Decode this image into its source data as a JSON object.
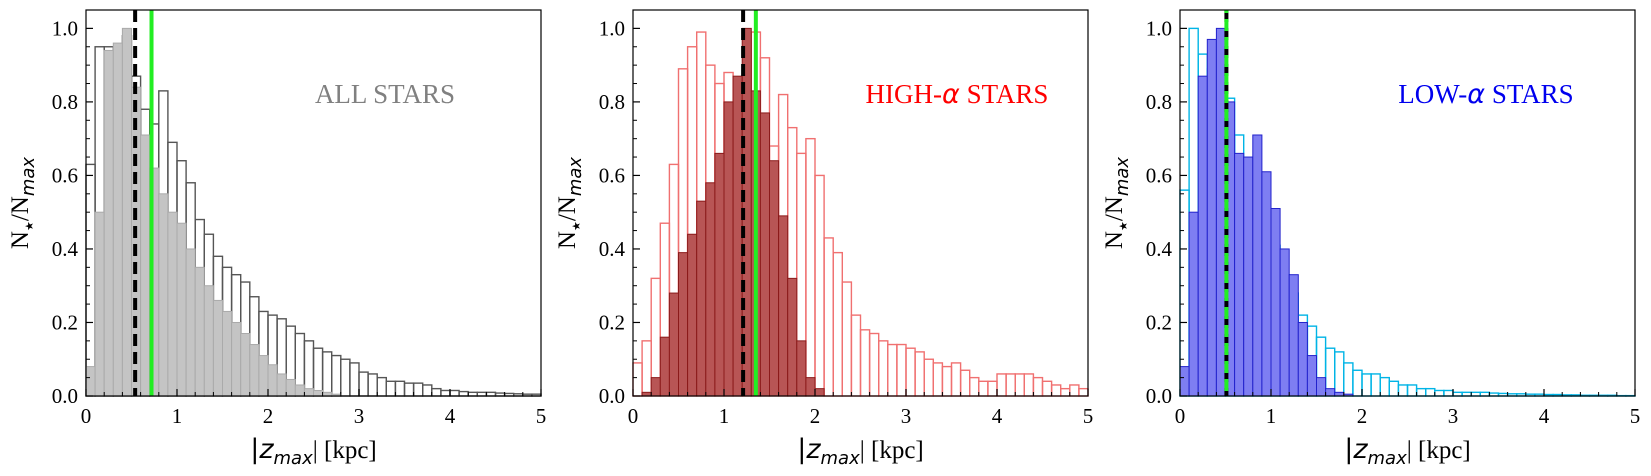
{
  "chart_data": [
    {
      "type": "bar",
      "panel_label": "ALL STARS",
      "label_color": "#808080",
      "xlabel_main": "|z",
      "xlabel_sub": "max",
      "xlabel_tail": "| [kpc]",
      "ylabel_main": "N",
      "ylabel_star": "★",
      "ylabel_mid": "/N",
      "ylabel_sub": "max",
      "xlim": [
        0,
        5
      ],
      "ylim": [
        0,
        1.05
      ],
      "xticks": [
        "0",
        "1",
        "2",
        "3",
        "4",
        "5"
      ],
      "yticks": [
        "0.0",
        "0.2",
        "0.4",
        "0.6",
        "0.8",
        "1.0"
      ],
      "bin_width": 0.1,
      "bin_start": 0,
      "vlines": [
        {
          "x": 0.54,
          "style": "dashed",
          "color": "#000000"
        },
        {
          "x": 0.72,
          "style": "solid",
          "color": "#22ee22"
        }
      ],
      "series": [
        {
          "style": "step",
          "edge": "#555555",
          "fill": "none",
          "values": [
            0.63,
            0.95,
            0.95,
            0.94,
            0.98,
            0.87,
            0.78,
            0.74,
            0.83,
            0.69,
            0.64,
            0.58,
            0.48,
            0.44,
            0.38,
            0.35,
            0.33,
            0.31,
            0.27,
            0.23,
            0.22,
            0.21,
            0.19,
            0.17,
            0.15,
            0.13,
            0.12,
            0.11,
            0.1,
            0.09,
            0.065,
            0.06,
            0.05,
            0.04,
            0.04,
            0.035,
            0.035,
            0.03,
            0.02,
            0.015,
            0.015,
            0.012,
            0.01,
            0.01,
            0.01,
            0.008,
            0.007,
            0.006,
            0.005,
            0.005
          ]
        },
        {
          "style": "filled",
          "edge": "#aaaaaa",
          "fill": "#c4c4c4",
          "values": [
            0.08,
            0.5,
            0.94,
            0.96,
            1.0,
            0.84,
            0.71,
            0.62,
            0.55,
            0.5,
            0.47,
            0.4,
            0.35,
            0.3,
            0.26,
            0.23,
            0.2,
            0.17,
            0.14,
            0.11,
            0.085,
            0.06,
            0.045,
            0.03,
            0.02,
            0.015,
            0.01,
            0.005,
            0.0,
            0.0,
            0.0,
            0.0,
            0.0,
            0.0,
            0.0,
            0.0,
            0.0,
            0.0,
            0.0,
            0.0,
            0.0,
            0.0,
            0.0,
            0.0,
            0.0,
            0.0,
            0.0,
            0.0,
            0.0,
            0.0
          ]
        }
      ]
    },
    {
      "type": "bar",
      "panel_label_main": "HIGH-",
      "panel_label_greek": "α",
      "panel_label_tail": " STARS",
      "label_color": "#ff0000",
      "xlabel_main": "|z",
      "xlabel_sub": "max",
      "xlabel_tail": "| [kpc]",
      "ylabel_main": "N",
      "ylabel_star": "★",
      "ylabel_mid": "/N",
      "ylabel_sub": "max",
      "xlim": [
        0,
        5
      ],
      "ylim": [
        0,
        1.05
      ],
      "xticks": [
        "0",
        "1",
        "2",
        "3",
        "4",
        "5"
      ],
      "yticks": [
        "0.0",
        "0.2",
        "0.4",
        "0.6",
        "0.8",
        "1.0"
      ],
      "bin_width": 0.1,
      "bin_start": 0,
      "vlines": [
        {
          "x": 1.21,
          "style": "dashed",
          "color": "#000000"
        },
        {
          "x": 1.35,
          "style": "solid",
          "color": "#22ee22"
        }
      ],
      "series": [
        {
          "style": "step",
          "edge": "#f07070",
          "fill": "none",
          "values": [
            0.09,
            0.15,
            0.32,
            0.47,
            0.63,
            0.89,
            0.95,
            0.99,
            0.9,
            0.85,
            0.88,
            0.74,
            0.83,
            0.99,
            0.92,
            0.68,
            0.82,
            0.73,
            0.66,
            0.7,
            0.6,
            0.43,
            0.39,
            0.31,
            0.22,
            0.18,
            0.17,
            0.15,
            0.14,
            0.14,
            0.13,
            0.12,
            0.1,
            0.09,
            0.08,
            0.09,
            0.07,
            0.05,
            0.04,
            0.04,
            0.06,
            0.06,
            0.06,
            0.06,
            0.05,
            0.04,
            0.03,
            0.02,
            0.03,
            0.02
          ]
        },
        {
          "style": "filled",
          "edge": "#8b1a1a",
          "fill": "#b85555",
          "values": [
            0.0,
            0.01,
            0.05,
            0.16,
            0.28,
            0.39,
            0.44,
            0.53,
            0.58,
            0.66,
            0.8,
            0.87,
            1.0,
            0.83,
            0.77,
            0.64,
            0.49,
            0.32,
            0.15,
            0.05,
            0.02,
            0.0,
            0.0,
            0.0,
            0.0,
            0.0,
            0.0,
            0.0,
            0.0,
            0.0,
            0.0,
            0.0,
            0.0,
            0.0,
            0.0,
            0.0,
            0.0,
            0.0,
            0.0,
            0.0,
            0.0,
            0.0,
            0.0,
            0.0,
            0.0,
            0.0,
            0.0,
            0.0,
            0.0,
            0.0
          ]
        }
      ]
    },
    {
      "type": "bar",
      "panel_label_main": "LOW-",
      "panel_label_greek": "α",
      "panel_label_tail": " STARS",
      "label_color": "#0000ee",
      "xlabel_main": "|z",
      "xlabel_sub": "max",
      "xlabel_tail": "| [kpc]",
      "ylabel_main": "N",
      "ylabel_star": "★",
      "ylabel_mid": "/N",
      "ylabel_sub": "max",
      "xlim": [
        0,
        5
      ],
      "ylim": [
        0,
        1.05
      ],
      "xticks": [
        "0",
        "1",
        "2",
        "3",
        "4",
        "5"
      ],
      "yticks": [
        "0.0",
        "0.2",
        "0.4",
        "0.6",
        "0.8",
        "1.0"
      ],
      "bin_width": 0.1,
      "bin_start": 0,
      "vlines": [
        {
          "x": 0.51,
          "style": "dashed",
          "color": "#000000"
        },
        {
          "x": 0.51,
          "style": "dashed-offset",
          "color": "#22ee22"
        }
      ],
      "series": [
        {
          "style": "step",
          "edge": "#00b4e6",
          "fill": "none",
          "values": [
            0.56,
            1.0,
            0.93,
            0.89,
            0.93,
            0.81,
            0.71,
            0.64,
            0.6,
            0.51,
            0.41,
            0.33,
            0.28,
            0.22,
            0.19,
            0.16,
            0.13,
            0.12,
            0.09,
            0.07,
            0.06,
            0.06,
            0.05,
            0.04,
            0.03,
            0.03,
            0.02,
            0.02,
            0.015,
            0.015,
            0.01,
            0.01,
            0.01,
            0.01,
            0.008,
            0.007,
            0.006,
            0.006,
            0.005,
            0.005,
            0.004,
            0.004,
            0.003,
            0.003,
            0.002,
            0.002,
            0.002,
            0.002,
            0.001,
            0.001
          ]
        },
        {
          "style": "filled",
          "edge": "#2222cc",
          "fill": "#7e7ef2",
          "values": [
            0.08,
            0.5,
            0.87,
            0.97,
            1.0,
            0.8,
            0.66,
            0.65,
            0.71,
            0.61,
            0.51,
            0.4,
            0.33,
            0.2,
            0.11,
            0.05,
            0.02,
            0.01,
            0.005,
            0.0,
            0.0,
            0.0,
            0.0,
            0.0,
            0.0,
            0.0,
            0.0,
            0.0,
            0.0,
            0.0,
            0.0,
            0.0,
            0.0,
            0.0,
            0.0,
            0.0,
            0.0,
            0.0,
            0.0,
            0.0,
            0.0,
            0.0,
            0.0,
            0.0,
            0.0,
            0.0,
            0.0,
            0.0,
            0.0,
            0.0
          ]
        }
      ]
    }
  ]
}
